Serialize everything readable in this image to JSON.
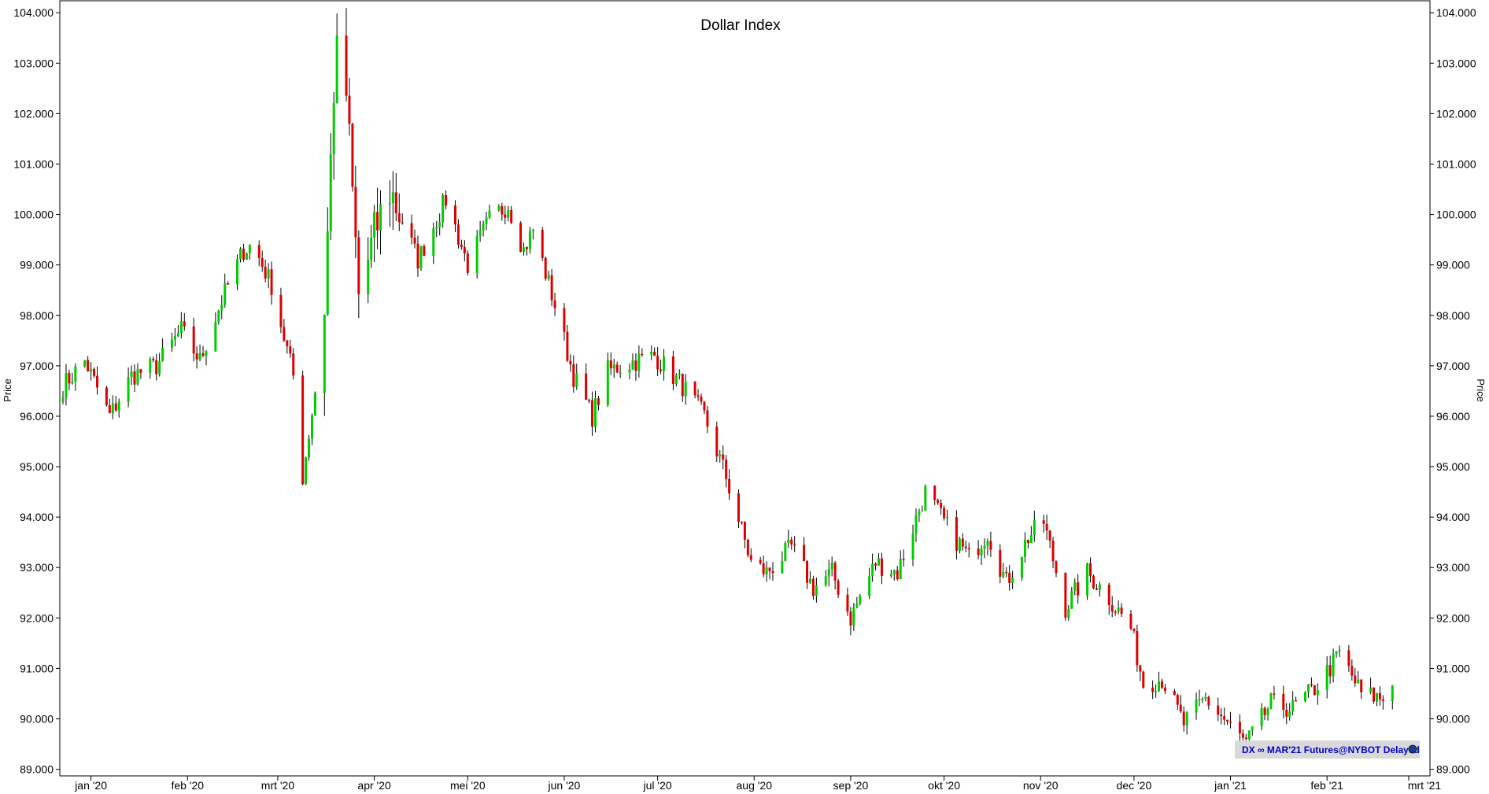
{
  "chart_data": {
    "type": "candlestick",
    "title": "Dollar Index",
    "ylabel": "Price",
    "ylim": [
      88.6,
      104.2
    ],
    "y_ticks": [
      "89.000",
      "90.000",
      "91.000",
      "92.000",
      "93.000",
      "94.000",
      "95.000",
      "96.000",
      "97.000",
      "98.000",
      "99.000",
      "100.000",
      "101.000",
      "102.000",
      "103.000",
      "104.000"
    ],
    "x_range": [
      "2019-12-23",
      "2021-02-28"
    ],
    "x_ticks": [
      {
        "label": "jan '20",
        "date": "2020-01-01"
      },
      {
        "label": "feb '20",
        "date": "2020-02-01"
      },
      {
        "label": "mrt '20",
        "date": "2020-03-01"
      },
      {
        "label": "apr '20",
        "date": "2020-04-01"
      },
      {
        "label": "mei '20",
        "date": "2020-05-01"
      },
      {
        "label": "jun '20",
        "date": "2020-06-01"
      },
      {
        "label": "jul '20",
        "date": "2020-07-01"
      },
      {
        "label": "aug '20",
        "date": "2020-08-01"
      },
      {
        "label": "sep '20",
        "date": "2020-09-01"
      },
      {
        "label": "okt '20",
        "date": "2020-10-01"
      },
      {
        "label": "nov '20",
        "date": "2020-11-01"
      },
      {
        "label": "dec '20",
        "date": "2020-12-01"
      },
      {
        "label": "jan '21",
        "date": "2021-01-01"
      },
      {
        "label": "feb '21",
        "date": "2021-02-01"
      },
      {
        "label": "mrt '21",
        "date": "2021-03-01"
      }
    ],
    "anchors": [
      [
        "2019-12-23",
        96.6
      ],
      [
        "2019-12-30",
        97.1
      ],
      [
        "2020-01-07",
        96.0
      ],
      [
        "2020-01-14",
        96.8
      ],
      [
        "2020-01-22",
        97.0
      ],
      [
        "2020-01-30",
        97.7
      ],
      [
        "2020-02-05",
        97.1
      ],
      [
        "2020-02-12",
        98.3
      ],
      [
        "2020-02-19",
        99.3
      ],
      [
        "2020-02-22",
        99.4
      ],
      [
        "2020-02-28",
        98.6
      ],
      [
        "2020-03-06",
        96.8
      ],
      [
        "2020-03-09",
        94.8
      ],
      [
        "2020-03-13",
        96.5
      ],
      [
        "2020-03-16",
        98.2
      ],
      [
        "2020-03-19",
        102.5
      ],
      [
        "2020-03-20",
        103.1
      ],
      [
        "2020-03-23",
        102.4
      ],
      [
        "2020-03-27",
        98.4
      ],
      [
        "2020-04-02",
        99.8
      ],
      [
        "2020-04-06",
        100.5
      ],
      [
        "2020-04-15",
        99.1
      ],
      [
        "2020-04-24",
        100.3
      ],
      [
        "2020-05-01",
        99.0
      ],
      [
        "2020-05-08",
        99.9
      ],
      [
        "2020-05-14",
        100.2
      ],
      [
        "2020-05-19",
        99.3
      ],
      [
        "2020-05-22",
        99.7
      ],
      [
        "2020-05-29",
        98.2
      ],
      [
        "2020-06-04",
        96.8
      ],
      [
        "2020-06-10",
        96.0
      ],
      [
        "2020-06-15",
        96.9
      ],
      [
        "2020-06-24",
        97.1
      ],
      [
        "2020-06-30",
        97.2
      ],
      [
        "2020-07-09",
        96.6
      ],
      [
        "2020-07-16",
        96.0
      ],
      [
        "2020-07-23",
        94.8
      ],
      [
        "2020-07-31",
        93.1
      ],
      [
        "2020-08-05",
        92.9
      ],
      [
        "2020-08-13",
        93.4
      ],
      [
        "2020-08-20",
        92.6
      ],
      [
        "2020-08-26",
        92.9
      ],
      [
        "2020-09-01",
        92.0
      ],
      [
        "2020-09-09",
        93.1
      ],
      [
        "2020-09-16",
        92.9
      ],
      [
        "2020-09-25",
        94.5
      ],
      [
        "2020-10-02",
        93.8
      ],
      [
        "2020-10-09",
        93.2
      ],
      [
        "2020-10-15",
        93.7
      ],
      [
        "2020-10-21",
        92.7
      ],
      [
        "2020-10-28",
        93.6
      ],
      [
        "2020-11-02",
        93.9
      ],
      [
        "2020-11-09",
        92.2
      ],
      [
        "2020-11-16",
        92.9
      ],
      [
        "2020-11-23",
        92.4
      ],
      [
        "2020-11-30",
        91.8
      ],
      [
        "2020-12-04",
        90.7
      ],
      [
        "2020-12-10",
        90.8
      ],
      [
        "2020-12-17",
        89.9
      ],
      [
        "2020-12-24",
        90.4
      ],
      [
        "2021-01-06",
        89.5
      ],
      [
        "2021-01-14",
        90.3
      ],
      [
        "2021-01-21",
        90.2
      ],
      [
        "2021-01-28",
        90.6
      ],
      [
        "2021-02-03",
        91.1
      ],
      [
        "2021-02-05",
        91.3
      ],
      [
        "2021-02-12",
        90.5
      ],
      [
        "2021-02-19",
        90.4
      ],
      [
        "2021-02-22",
        90.8
      ]
    ],
    "grid": false,
    "colors": {
      "up": "#00cc00",
      "down": "#dd0000",
      "wick": "#000000",
      "axis": "#000000",
      "badge_bg": "#d9d9d9",
      "badge_text": "#0000cc"
    },
    "source_label": "DX ∞ MAR'21 Futures@NYBOT Delayed"
  }
}
